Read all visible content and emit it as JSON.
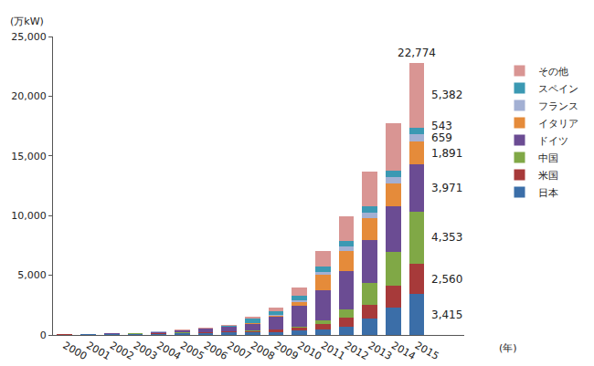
{
  "chart_data": {
    "type": "bar",
    "stacked": true,
    "ylabel": "(万kW)",
    "xlabel": "(年)",
    "categories": [
      "2000",
      "2001",
      "2002",
      "2003",
      "2004",
      "2005",
      "2006",
      "2007",
      "2008",
      "2009",
      "2010",
      "2011",
      "2012",
      "2013",
      "2014",
      "2015"
    ],
    "ylim": [
      0,
      25000
    ],
    "yticks": [
      0,
      {
        "value": 5000,
        "label": "5,000"
      },
      {
        "value": 10000,
        "label": "10,000"
      },
      {
        "value": 15000,
        "label": "15,000"
      },
      {
        "value": 20000,
        "label": "20,000"
      },
      {
        "value": 25000,
        "label": "25,000"
      }
    ],
    "grid": false,
    "legend": "right",
    "series": [
      {
        "name": "日本",
        "color": "#3b6ea8",
        "values": [
          33,
          45,
          64,
          86,
          113,
          142,
          171,
          192,
          214,
          263,
          362,
          491,
          663,
          1360,
          2330,
          3415
        ],
        "value_labels": [
          null,
          null,
          null,
          null,
          null,
          null,
          null,
          null,
          null,
          null,
          null,
          null,
          null,
          null,
          null,
          "3,415"
        ]
      },
      {
        "name": "米国",
        "color": "#a73a3a",
        "values": [
          14,
          17,
          21,
          28,
          38,
          48,
          62,
          83,
          117,
          164,
          253,
          415,
          752,
          1200,
          1830,
          2560
        ],
        "value_labels": [
          null,
          null,
          null,
          null,
          null,
          null,
          null,
          null,
          null,
          null,
          null,
          null,
          null,
          null,
          null,
          "2,560"
        ]
      },
      {
        "name": "中国",
        "color": "#80a846",
        "values": [
          2,
          3,
          4,
          5,
          6,
          7,
          8,
          10,
          14,
          30,
          80,
          330,
          700,
          1780,
          2820,
          4353
        ],
        "value_labels": [
          null,
          null,
          null,
          null,
          null,
          null,
          null,
          null,
          null,
          null,
          null,
          null,
          null,
          null,
          null,
          "4,353"
        ]
      },
      {
        "name": "ドイツ",
        "color": "#6b4c93",
        "values": [
          11,
          18,
          30,
          44,
          107,
          206,
          290,
          417,
          598,
          1057,
          1737,
          2500,
          3270,
          3620,
          3820,
          3971
        ],
        "value_labels": [
          null,
          null,
          null,
          null,
          null,
          null,
          null,
          null,
          null,
          null,
          null,
          null,
          null,
          null,
          null,
          "3,971"
        ]
      },
      {
        "name": "イタリア",
        "color": "#e58b3a",
        "values": [
          2,
          2,
          2,
          3,
          3,
          4,
          5,
          12,
          48,
          120,
          350,
          1280,
          1640,
          1810,
          1860,
          1891
        ],
        "value_labels": [
          null,
          null,
          null,
          null,
          null,
          null,
          null,
          null,
          null,
          null,
          null,
          null,
          null,
          null,
          null,
          "1,891"
        ]
      },
      {
        "name": "フランス",
        "color": "#a3b0d3",
        "values": [
          1,
          1,
          2,
          2,
          3,
          3,
          4,
          8,
          10,
          30,
          120,
          290,
          410,
          480,
          570,
          659
        ],
        "value_labels": [
          null,
          null,
          null,
          null,
          null,
          null,
          null,
          null,
          null,
          null,
          null,
          null,
          null,
          null,
          null,
          "659"
        ]
      },
      {
        "name": "スペイン",
        "color": "#3b99b3",
        "values": [
          1,
          1,
          1,
          1,
          2,
          5,
          15,
          70,
          350,
          360,
          390,
          440,
          470,
          530,
          540,
          543
        ],
        "value_labels": [
          null,
          null,
          null,
          null,
          null,
          null,
          null,
          null,
          null,
          null,
          null,
          null,
          null,
          null,
          null,
          "543"
        ]
      },
      {
        "name": "その他",
        "color": "#d99593",
        "values": [
          10,
          12,
          15,
          20,
          25,
          30,
          30,
          60,
          150,
          280,
          660,
          1250,
          2000,
          2920,
          3930,
          5382
        ],
        "value_labels": [
          null,
          null,
          null,
          null,
          null,
          null,
          null,
          null,
          null,
          null,
          null,
          null,
          null,
          null,
          null,
          "5,382"
        ]
      }
    ],
    "total_label": {
      "category": "2015",
      "value": 22774,
      "label": "22,774"
    }
  }
}
